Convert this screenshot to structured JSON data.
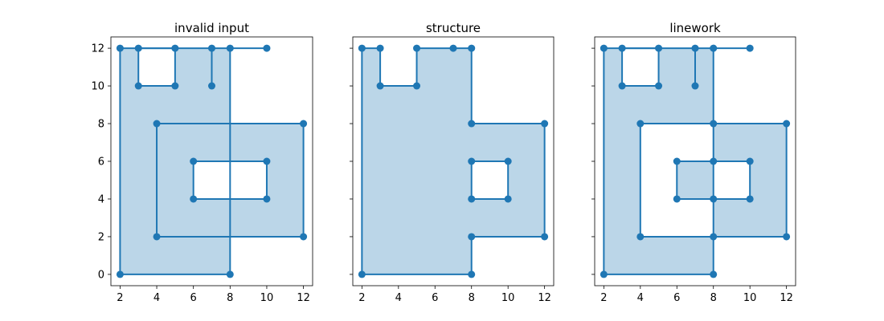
{
  "chart_data": [
    {
      "type": "line",
      "title": "invalid input",
      "xlim": [
        1.5,
        12.5
      ],
      "ylim": [
        -0.6,
        12.6
      ],
      "xticks": [
        "2",
        "4",
        "6",
        "8",
        "10",
        "12"
      ],
      "yticks": [
        "0",
        "2",
        "4",
        "6",
        "8",
        "10",
        "12"
      ],
      "show_y_tick_labels": true,
      "grid": false,
      "line_color": "#1f77b4",
      "fill_color": "#1f77b4",
      "fill_opacity": 0.3,
      "polygons": [
        {
          "fill": true,
          "points": [
            [
              2,
              0
            ],
            [
              8,
              0
            ],
            [
              8,
              12
            ],
            [
              10,
              12
            ],
            [
              2,
              12
            ],
            [
              2,
              0
            ]
          ]
        },
        {
          "fill": true,
          "points": [
            [
              3,
              12
            ],
            [
              3,
              10
            ],
            [
              5,
              10
            ],
            [
              5,
              12
            ],
            [
              3,
              12
            ]
          ]
        },
        {
          "fill": true,
          "points": [
            [
              4,
              2
            ],
            [
              12,
              2
            ],
            [
              12,
              8
            ],
            [
              4,
              8
            ],
            [
              4,
              2
            ]
          ]
        },
        {
          "fill": true,
          "points": [
            [
              6,
              4
            ],
            [
              10,
              4
            ],
            [
              10,
              6
            ],
            [
              6,
              6
            ],
            [
              6,
              4
            ]
          ]
        }
      ],
      "segments": [
        {
          "points": [
            [
              7,
              12
            ],
            [
              7,
              10
            ]
          ]
        }
      ],
      "fill_regions": [
        [
          [
            2,
            0
          ],
          [
            8,
            0
          ],
          [
            8,
            2
          ],
          [
            4,
            2
          ],
          [
            4,
            8
          ],
          [
            8,
            8
          ],
          [
            8,
            12
          ],
          [
            5,
            12
          ],
          [
            5,
            10
          ],
          [
            3,
            10
          ],
          [
            3,
            12
          ],
          [
            2,
            12
          ],
          [
            2,
            0
          ]
        ],
        [
          [
            8,
            2
          ],
          [
            12,
            2
          ],
          [
            12,
            8
          ],
          [
            8,
            8
          ],
          [
            8,
            6
          ],
          [
            10,
            6
          ],
          [
            10,
            4
          ],
          [
            8,
            4
          ],
          [
            8,
            2
          ]
        ],
        [
          [
            4,
            2
          ],
          [
            8,
            2
          ],
          [
            8,
            4
          ],
          [
            6,
            4
          ],
          [
            6,
            6
          ],
          [
            8,
            6
          ],
          [
            8,
            8
          ],
          [
            4,
            8
          ],
          [
            4,
            2
          ]
        ]
      ]
    },
    {
      "type": "line",
      "title": "structure",
      "xlim": [
        1.5,
        12.5
      ],
      "ylim": [
        -0.6,
        12.6
      ],
      "xticks": [
        "2",
        "4",
        "6",
        "8",
        "10",
        "12"
      ],
      "yticks": [
        "0",
        "2",
        "4",
        "6",
        "8",
        "10",
        "12"
      ],
      "show_y_tick_labels": false,
      "grid": false,
      "line_color": "#1f77b4",
      "fill_color": "#1f77b4",
      "fill_opacity": 0.3,
      "polygons": [
        {
          "fill": true,
          "points": [
            [
              2,
              0
            ],
            [
              8,
              0
            ],
            [
              8,
              2
            ],
            [
              12,
              2
            ],
            [
              12,
              8
            ],
            [
              8,
              8
            ],
            [
              8,
              12
            ],
            [
              7,
              12
            ],
            [
              5,
              12
            ],
            [
              5,
              10
            ],
            [
              3,
              10
            ],
            [
              3,
              12
            ],
            [
              2,
              12
            ],
            [
              2,
              0
            ]
          ]
        },
        {
          "fill": true,
          "points": [
            [
              8,
              4
            ],
            [
              10,
              4
            ],
            [
              10,
              6
            ],
            [
              8,
              6
            ],
            [
              8,
              4
            ]
          ]
        }
      ],
      "segments": [],
      "fill_regions": [
        [
          [
            2,
            0
          ],
          [
            8,
            0
          ],
          [
            8,
            2
          ],
          [
            12,
            2
          ],
          [
            12,
            8
          ],
          [
            8,
            8
          ],
          [
            8,
            12
          ],
          [
            5,
            12
          ],
          [
            5,
            10
          ],
          [
            3,
            10
          ],
          [
            3,
            12
          ],
          [
            2,
            12
          ],
          [
            2,
            0
          ]
        ]
      ],
      "holes": [
        [
          [
            8,
            4
          ],
          [
            10,
            4
          ],
          [
            10,
            6
          ],
          [
            8,
            6
          ],
          [
            8,
            4
          ]
        ]
      ]
    },
    {
      "type": "line",
      "title": "linework",
      "xlim": [
        1.5,
        12.5
      ],
      "ylim": [
        -0.6,
        12.6
      ],
      "xticks": [
        "2",
        "4",
        "6",
        "8",
        "10",
        "12"
      ],
      "yticks": [
        "0",
        "2",
        "4",
        "6",
        "8",
        "10",
        "12"
      ],
      "show_y_tick_labels": false,
      "grid": false,
      "line_color": "#1f77b4",
      "fill_color": "#1f77b4",
      "fill_opacity": 0.3,
      "polygons": [
        {
          "fill": true,
          "points": [
            [
              2,
              0
            ],
            [
              8,
              0
            ],
            [
              8,
              12
            ],
            [
              10,
              12
            ],
            [
              2,
              12
            ],
            [
              2,
              0
            ]
          ]
        },
        {
          "fill": true,
          "points": [
            [
              3,
              12
            ],
            [
              3,
              10
            ],
            [
              5,
              10
            ],
            [
              5,
              12
            ],
            [
              3,
              12
            ]
          ]
        },
        {
          "fill": true,
          "points": [
            [
              4,
              2
            ],
            [
              12,
              2
            ],
            [
              12,
              8
            ],
            [
              4,
              8
            ],
            [
              4,
              2
            ]
          ]
        },
        {
          "fill": true,
          "points": [
            [
              6,
              4
            ],
            [
              10,
              4
            ],
            [
              10,
              6
            ],
            [
              6,
              6
            ],
            [
              6,
              4
            ]
          ]
        }
      ],
      "segments": [
        {
          "points": [
            [
              7,
              12
            ],
            [
              7,
              10
            ]
          ]
        }
      ],
      "markers": [
        [
          8,
          2
        ],
        [
          8,
          4
        ],
        [
          8,
          6
        ],
        [
          8,
          8
        ]
      ],
      "fill_regions": [
        [
          [
            2,
            0
          ],
          [
            8,
            0
          ],
          [
            8,
            2
          ],
          [
            4,
            2
          ],
          [
            4,
            8
          ],
          [
            8,
            8
          ],
          [
            8,
            12
          ],
          [
            5,
            12
          ],
          [
            5,
            10
          ],
          [
            3,
            10
          ],
          [
            3,
            12
          ],
          [
            2,
            12
          ],
          [
            2,
            0
          ]
        ],
        [
          [
            8,
            2
          ],
          [
            12,
            2
          ],
          [
            12,
            8
          ],
          [
            8,
            8
          ],
          [
            8,
            6
          ],
          [
            10,
            6
          ],
          [
            10,
            4
          ],
          [
            8,
            4
          ],
          [
            8,
            2
          ]
        ],
        [
          [
            6,
            4
          ],
          [
            8,
            4
          ],
          [
            8,
            6
          ],
          [
            6,
            6
          ],
          [
            6,
            4
          ]
        ]
      ]
    }
  ]
}
